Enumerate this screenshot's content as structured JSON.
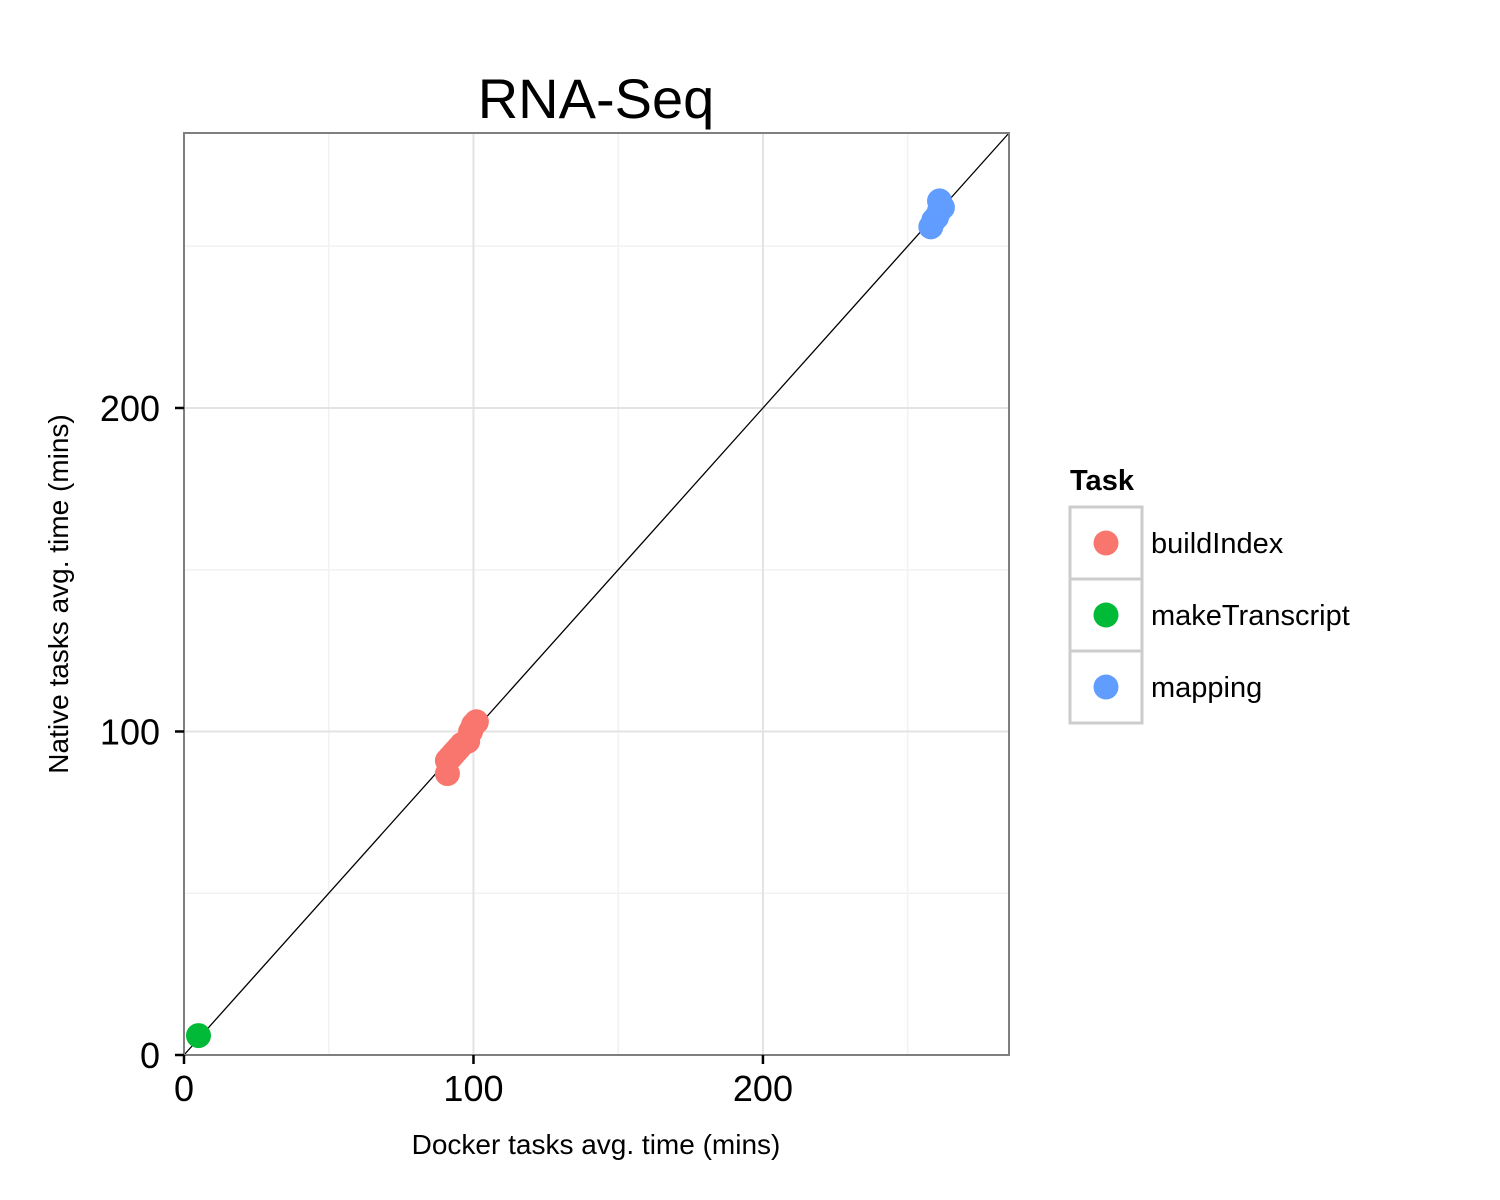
{
  "chart_data": {
    "type": "scatter",
    "title": "RNA-Seq",
    "xlabel": "Docker tasks avg. time (mins)",
    "ylabel": "Native tasks avg. time (mins)",
    "xlim": [
      0,
      285
    ],
    "ylim": [
      0,
      285
    ],
    "xticks": [
      0,
      100,
      200
    ],
    "yticks": [
      0,
      100,
      200
    ],
    "grid": true,
    "reference_line": "y = x",
    "legend": {
      "title": "Task",
      "placement": "right"
    },
    "series": [
      {
        "name": "buildIndex",
        "color": "#F8766D",
        "points": [
          [
            91,
            87
          ],
          [
            91,
            91
          ],
          [
            92,
            92
          ],
          [
            93,
            93
          ],
          [
            94,
            94
          ],
          [
            95,
            95
          ],
          [
            96,
            96
          ],
          [
            98,
            97
          ],
          [
            99,
            100
          ],
          [
            100,
            102
          ],
          [
            101,
            103
          ]
        ]
      },
      {
        "name": "makeTranscript",
        "color": "#00BA38",
        "points": [
          [
            5,
            6
          ]
        ]
      },
      {
        "name": "mapping",
        "color": "#619CFF",
        "points": [
          [
            258,
            256
          ],
          [
            259,
            258
          ],
          [
            260,
            259
          ],
          [
            261,
            261
          ],
          [
            262,
            262
          ],
          [
            261,
            264
          ]
        ]
      }
    ]
  }
}
